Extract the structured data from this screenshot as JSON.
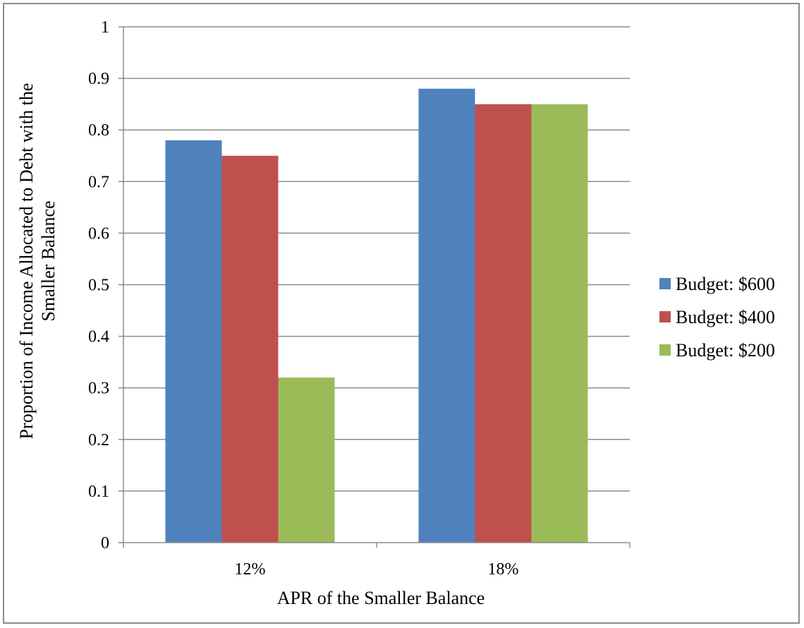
{
  "chart_data": {
    "type": "bar",
    "categories": [
      "12%",
      "18%"
    ],
    "series": [
      {
        "name": "Budget: $600",
        "color": "#4f81bd",
        "values": [
          0.78,
          0.88
        ]
      },
      {
        "name": "Budget: $400",
        "color": "#c0504d",
        "values": [
          0.75,
          0.85
        ]
      },
      {
        "name": "Budget: $200",
        "color": "#9bbb59",
        "values": [
          0.32,
          0.85
        ]
      }
    ],
    "xlabel": "APR of the Smaller Balance",
    "ylabel_line1": "Proportion of Income Allocated to Debt with the",
    "ylabel_line2": "Smaller Balance",
    "ylim": [
      0,
      1
    ],
    "yticks": [
      0,
      0.1,
      0.2,
      0.3,
      0.4,
      0.5,
      0.6,
      0.7,
      0.8,
      0.9,
      1
    ],
    "ytick_labels": [
      "0",
      "0.1",
      "0.2",
      "0.3",
      "0.4",
      "0.5",
      "0.6",
      "0.7",
      "0.8",
      "0.9",
      "1"
    ],
    "grid": true,
    "legend_position": "right"
  }
}
